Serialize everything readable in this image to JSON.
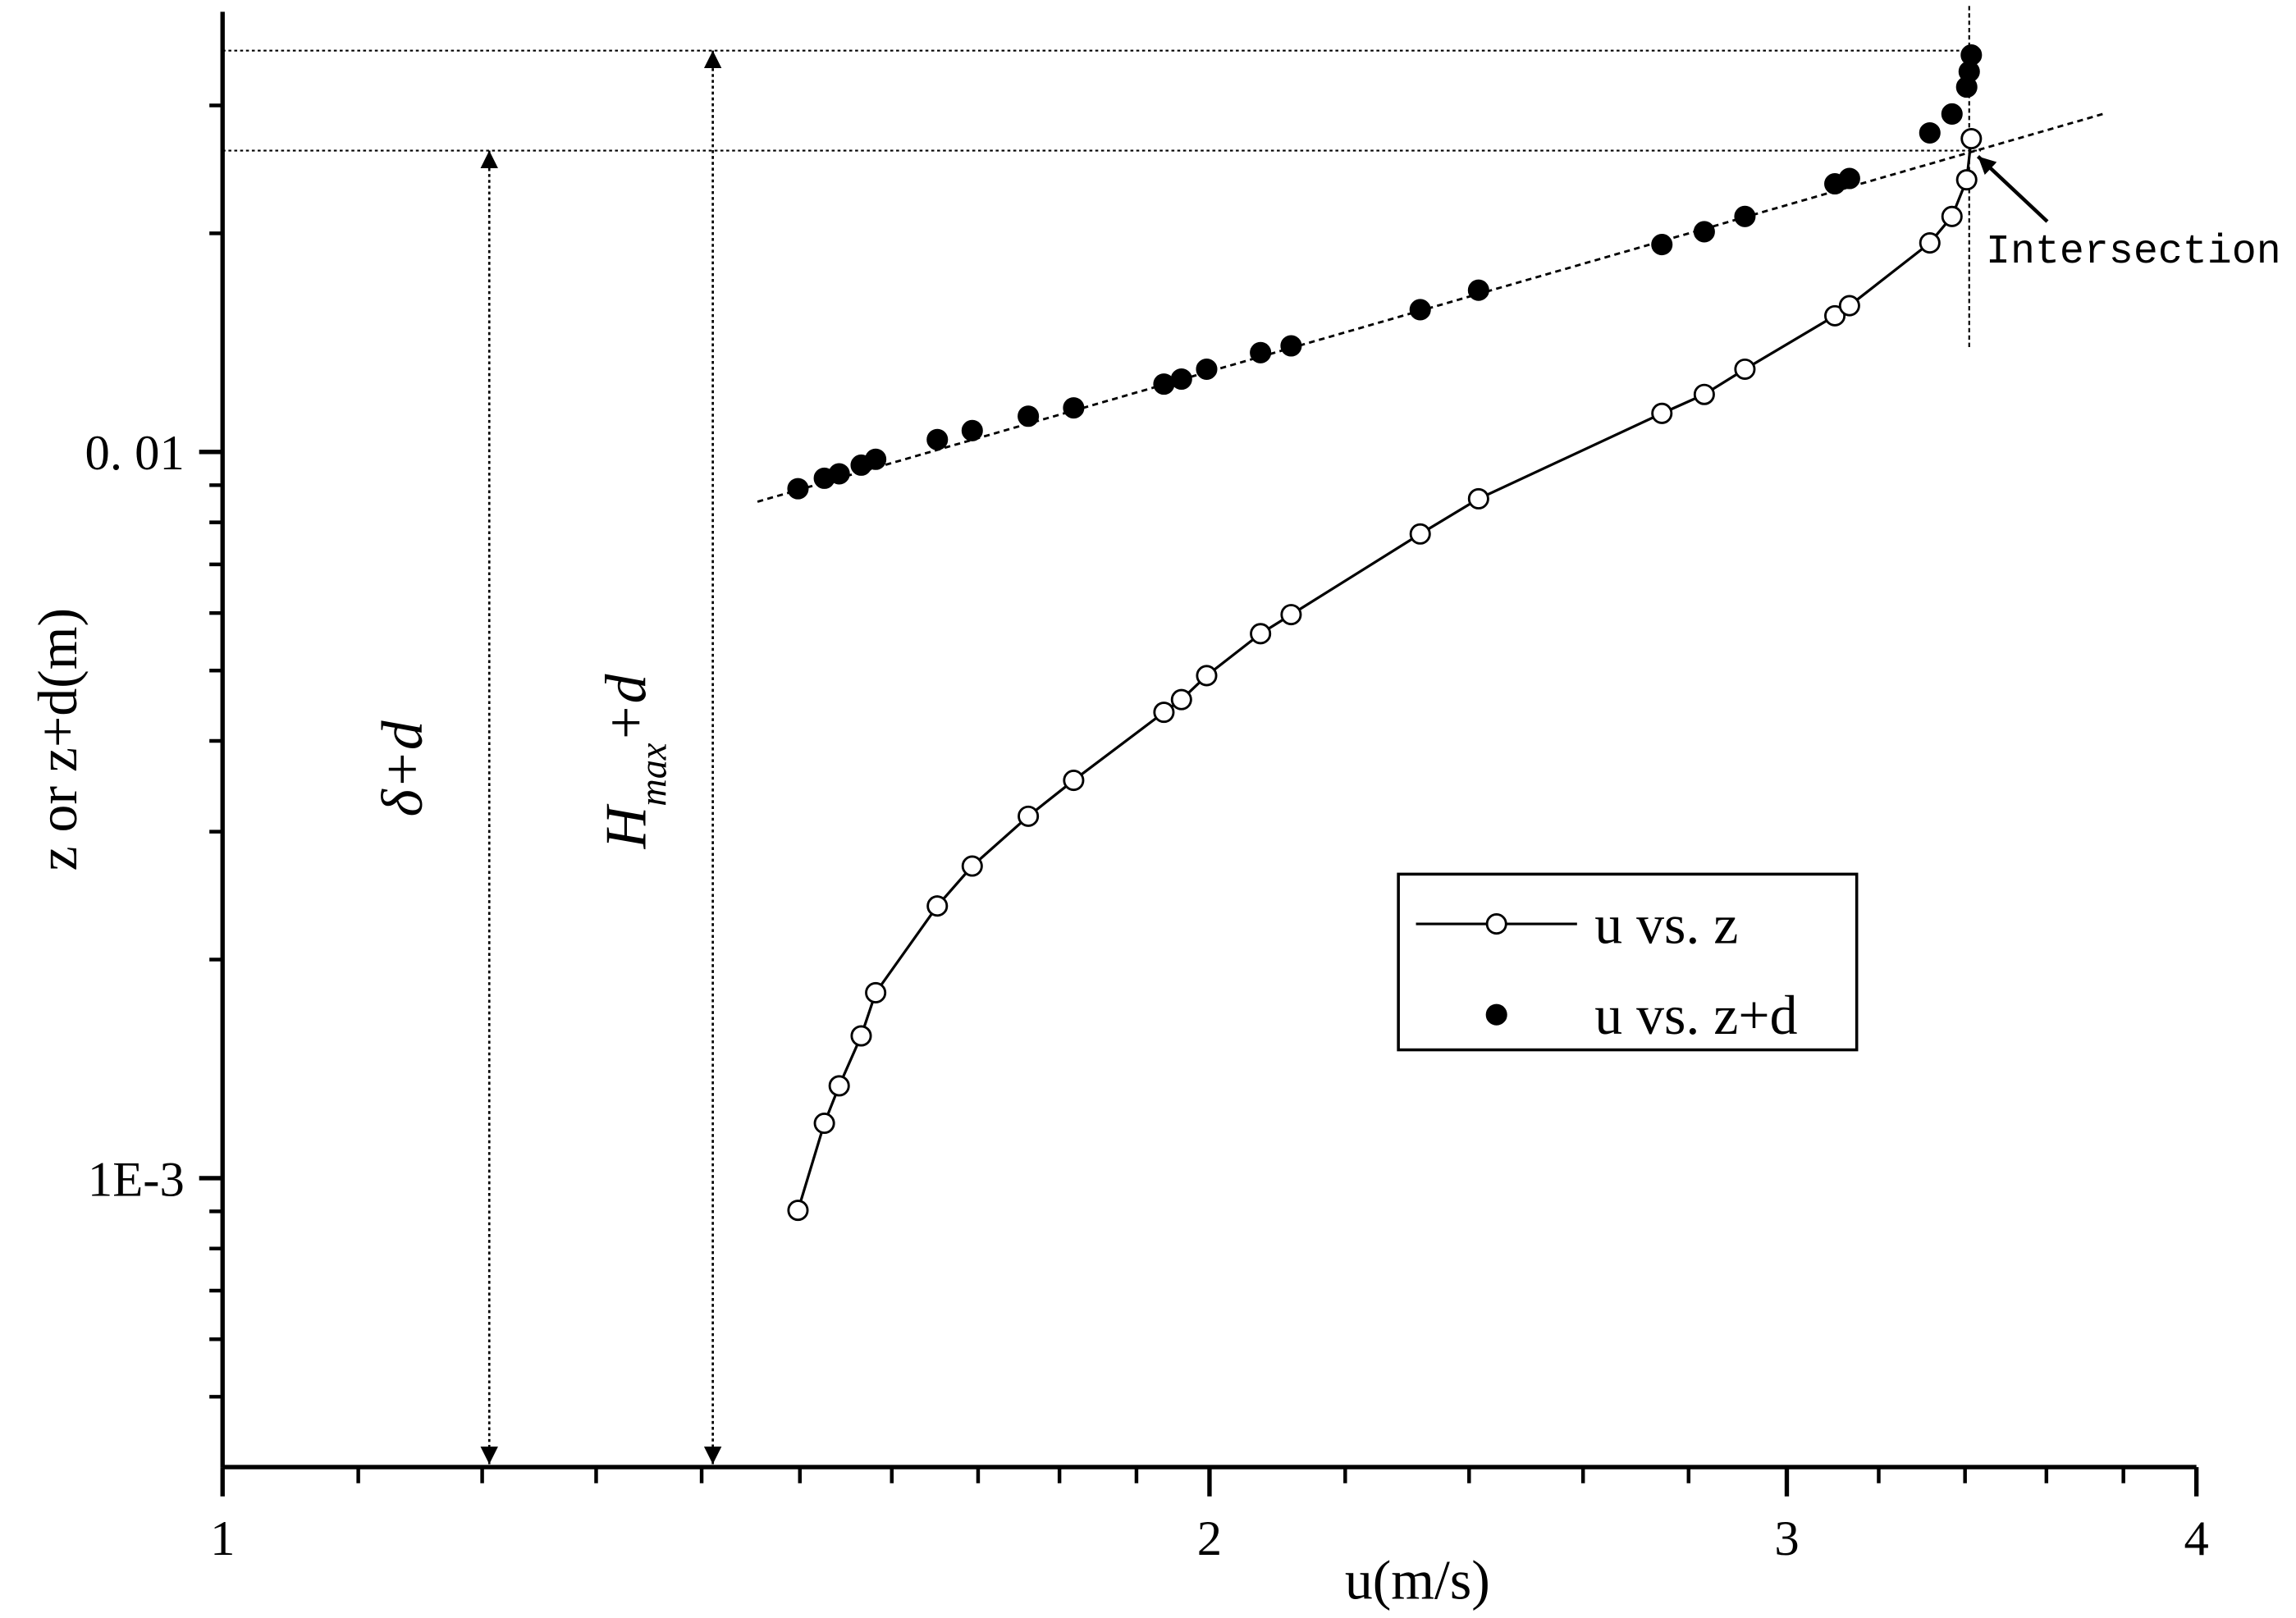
{
  "chart_data": {
    "type": "scatter",
    "x_label": "u(m/s)",
    "y_label": "z or z+d(m)",
    "xlog": true,
    "ylog": true,
    "xlim": [
      1,
      4
    ],
    "ylim": [
      0.0004,
      0.04
    ],
    "xticks": [
      1,
      2,
      3,
      4
    ],
    "yticks": [
      {
        "value": 0.001,
        "label": "1E-3"
      },
      {
        "value": 0.01,
        "label": "0. 01"
      }
    ],
    "xminor": [
      1.1,
      1.2,
      1.3,
      1.4,
      1.5,
      1.6,
      1.7,
      1.8,
      1.9,
      2.2,
      2.4,
      2.6,
      2.8,
      3.2,
      3.4,
      3.6,
      3.8
    ],
    "yminor": [
      0.0005,
      0.0006,
      0.0007,
      0.0008,
      0.0009,
      0.002,
      0.003,
      0.004,
      0.005,
      0.006,
      0.007,
      0.008,
      0.009,
      0.02,
      0.03
    ],
    "legend": "center-right",
    "series": [
      {
        "name": "u vs. z",
        "color": "#000000",
        "marker": "open",
        "line": true,
        "x": [
          1.498,
          1.526,
          1.542,
          1.566,
          1.582,
          1.652,
          1.693,
          1.761,
          1.818,
          1.937,
          1.961,
          1.996,
          2.073,
          2.118,
          2.319,
          2.416,
          2.748,
          2.831,
          2.913,
          3.103,
          3.135,
          3.317,
          3.369,
          3.404,
          3.415
        ],
        "values": [
          0.000903,
          0.00119,
          0.00134,
          0.00157,
          0.0018,
          0.00237,
          0.00269,
          0.00315,
          0.00353,
          0.00438,
          0.00456,
          0.00492,
          0.00562,
          0.00597,
          0.00771,
          0.00862,
          0.0113,
          0.012,
          0.013,
          0.0154,
          0.0159,
          0.0194,
          0.0211,
          0.0237,
          0.027
        ]
      },
      {
        "name": "u vs. z+d",
        "color": "#000000",
        "marker": "filled",
        "line": false,
        "x": [
          1.498,
          1.526,
          1.542,
          1.566,
          1.582,
          1.652,
          1.693,
          1.761,
          1.818,
          1.937,
          1.961,
          1.996,
          2.073,
          2.118,
          2.319,
          2.416,
          2.748,
          2.831,
          2.913,
          3.103,
          3.135,
          3.317,
          3.369,
          3.404,
          3.41,
          3.415
        ],
        "values": [
          0.0089,
          0.0092,
          0.00933,
          0.00959,
          0.00977,
          0.0104,
          0.0107,
          0.0112,
          0.0115,
          0.0124,
          0.0126,
          0.013,
          0.0137,
          0.014,
          0.0157,
          0.0167,
          0.0193,
          0.0201,
          0.0211,
          0.0234,
          0.0238,
          0.0275,
          0.0292,
          0.0318,
          0.0334,
          0.0352
        ]
      }
    ],
    "fit_line": {
      "x": [
        1.456,
        3.746
      ],
      "values": [
        0.00854,
        0.0292
      ]
    },
    "annotations": {
      "delta": {
        "text": "δ+d",
        "x": 1.206,
        "y_top": 0.026
      },
      "hmax": {
        "text": "H",
        "sub": "max",
        "suffix": "+d",
        "x": 1.411,
        "y_top": 0.0357
      },
      "intersection": {
        "text": "Intersection",
        "x": 3.41,
        "y_bottom": 0.0139,
        "label_x": 3.45,
        "label_y": 0.0191
      }
    }
  }
}
